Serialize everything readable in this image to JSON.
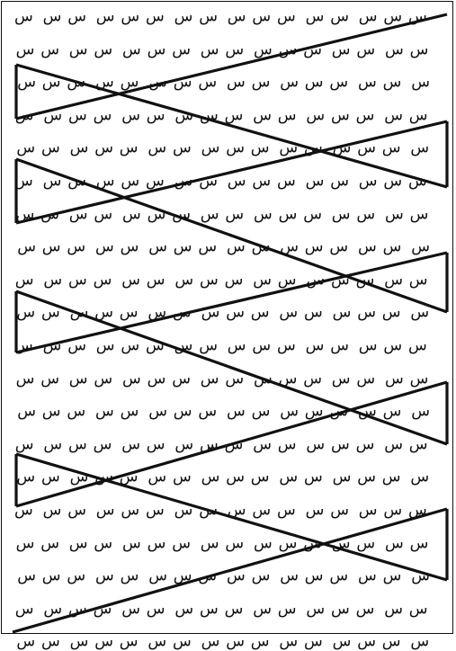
{
  "worksheet": {
    "letter": "س",
    "rows_per_page": 20,
    "letters_per_row": 16,
    "ink_color": "#111111",
    "paper_color": "#ffffff"
  }
}
